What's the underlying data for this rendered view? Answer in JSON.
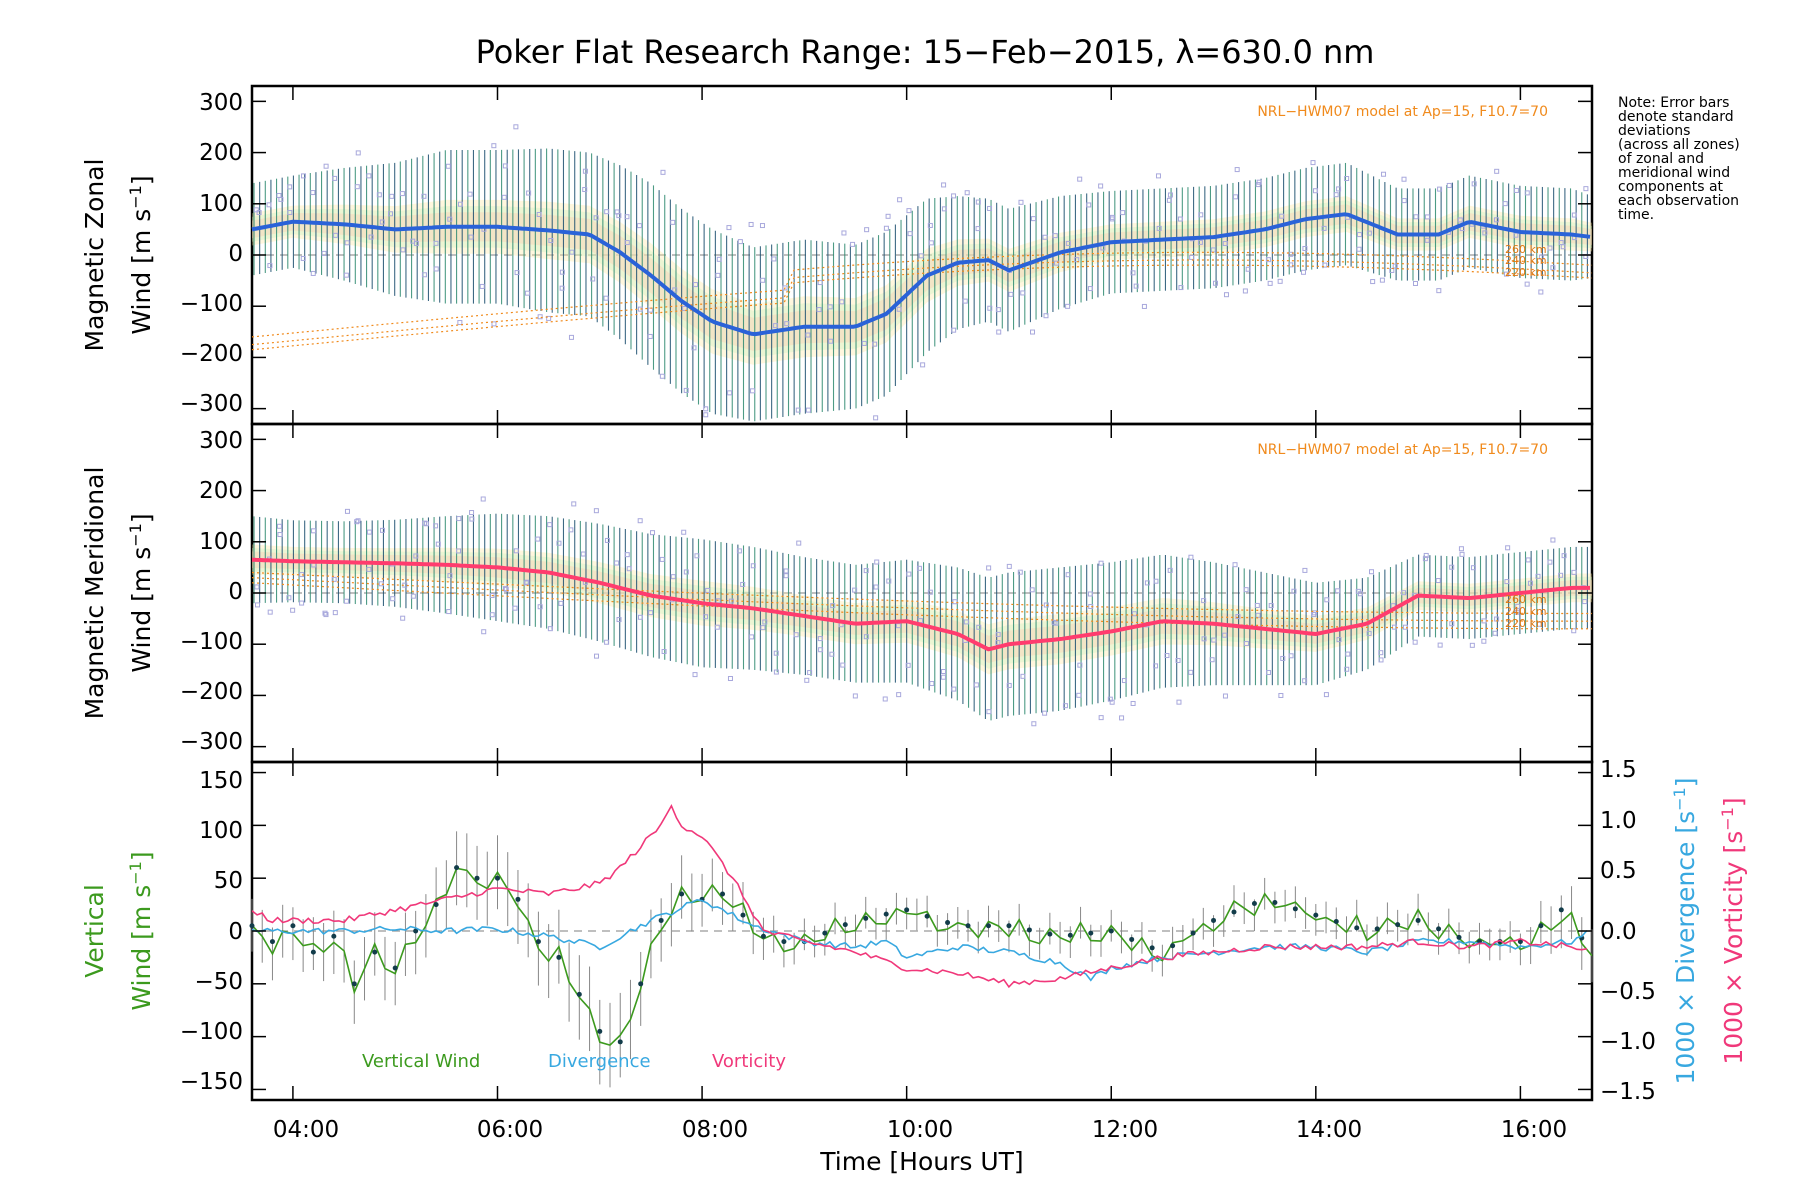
{
  "title": "Poker Flat Research Range: 15−Feb−2015, λ=630.0 nm",
  "note": [
    "Note: Error bars",
    "denote standard",
    "deviations",
    "(across all zones)",
    "of zonal and",
    "meridional wind",
    "components at",
    "each observation",
    "time."
  ],
  "model_note": "NRL−HWM07 model at Ap=15, F10.7=70",
  "altitude_labels": [
    "260 km",
    "240 km",
    "220 km"
  ],
  "x_axis": {
    "label": "Time [Hours UT]",
    "ticks": [
      "04:00",
      "06:00",
      "08:00",
      "10:00",
      "12:00",
      "14:00",
      "16:00"
    ],
    "range_hours": [
      3.6,
      16.7
    ]
  },
  "panels": {
    "zonal": {
      "ylabel_line1": "Magnetic Zonal",
      "ylabel_line2": "Wind [m s",
      "yticks": [
        "300",
        "200",
        "100",
        "0",
        "−100",
        "−200",
        "−300"
      ]
    },
    "meridional": {
      "ylabel_line1": "Magnetic Meridional",
      "ylabel_line2": "Wind [m s",
      "yticks": [
        "300",
        "200",
        "100",
        "0",
        "−100",
        "−200",
        "−300"
      ]
    },
    "vertical": {
      "ylabel_line1": "Vertical",
      "ylabel_line2": "Wind [m s",
      "yticks": [
        "150",
        "100",
        "50",
        "0",
        "−50",
        "−100",
        "−150"
      ],
      "right_yticks": [
        "1.5",
        "1.0",
        "0.5",
        "0.0",
        "−0.5",
        "−1.0",
        "−1.5"
      ],
      "right_label_div": "1000 × Divergence [s",
      "right_label_vort": "1000 × Vorticity [s",
      "legend": [
        "Vertical Wind",
        "Divergence",
        "Vorticity"
      ]
    }
  },
  "colors": {
    "zonal_line": "#2a62d8",
    "meridional_line": "#ff3c6e",
    "vertical": "#3c9a1e",
    "divergence": "#38a8e0",
    "vorticity": "#f0387a",
    "model": "#f08a1c",
    "scatter": "#a8a8dc",
    "errorbar": "#1b4f6e"
  },
  "chart_data": {
    "type": "line",
    "x_units": "hours UT",
    "series": [
      {
        "name": "Magnetic Zonal Wind",
        "ylim": [
          -330,
          330
        ],
        "x": [
          3.6,
          4.0,
          4.5,
          5.0,
          5.5,
          6.0,
          6.5,
          6.9,
          7.2,
          7.5,
          7.8,
          8.1,
          8.5,
          9.0,
          9.5,
          9.8,
          10.2,
          10.5,
          10.8,
          11.0,
          11.5,
          12.0,
          12.5,
          13.0,
          13.5,
          13.9,
          14.3,
          14.8,
          15.2,
          15.5,
          16.0,
          16.5,
          16.7
        ],
        "values": [
          50,
          65,
          60,
          50,
          55,
          55,
          48,
          40,
          5,
          -40,
          -90,
          -130,
          -155,
          -140,
          -140,
          -115,
          -40,
          -15,
          -10,
          -30,
          5,
          25,
          30,
          35,
          50,
          70,
          80,
          40,
          40,
          65,
          45,
          40,
          35
        ],
        "error": [
          90,
          90,
          110,
          130,
          150,
          150,
          160,
          160,
          170,
          180,
          180,
          180,
          170,
          170,
          160,
          160,
          150,
          130,
          120,
          120,
          110,
          100,
          100,
          100,
          100,
          100,
          100,
          90,
          90,
          90,
          90,
          90,
          80
        ]
      },
      {
        "name": "Magnetic Meridional Wind",
        "ylim": [
          -330,
          330
        ],
        "x": [
          3.6,
          4.0,
          4.5,
          5.0,
          5.5,
          6.0,
          6.5,
          7.0,
          7.5,
          8.0,
          8.5,
          9.0,
          9.5,
          10.0,
          10.5,
          10.8,
          11.0,
          11.5,
          12.0,
          12.5,
          13.0,
          13.5,
          14.0,
          14.5,
          15.0,
          15.5,
          16.0,
          16.5,
          16.7
        ],
        "values": [
          65,
          62,
          60,
          58,
          55,
          50,
          40,
          20,
          -5,
          -20,
          -30,
          -45,
          -60,
          -55,
          -80,
          -110,
          -100,
          -90,
          -75,
          -55,
          -60,
          -70,
          -80,
          -60,
          -5,
          -10,
          0,
          10,
          10
        ],
        "error": [
          85,
          80,
          80,
          85,
          95,
          105,
          110,
          115,
          120,
          125,
          120,
          115,
          115,
          120,
          130,
          140,
          140,
          140,
          135,
          130,
          120,
          110,
          100,
          90,
          80,
          80,
          80,
          80,
          80
        ]
      },
      {
        "name": "Vertical Wind",
        "ylim": [
          -160,
          160
        ],
        "x": [
          3.6,
          3.8,
          4.0,
          4.2,
          4.4,
          4.6,
          4.8,
          5.0,
          5.2,
          5.4,
          5.6,
          5.8,
          6.0,
          6.2,
          6.4,
          6.6,
          6.8,
          7.0,
          7.2,
          7.4,
          7.6,
          7.8,
          8.0,
          8.2,
          8.4,
          8.6,
          8.8,
          9.0,
          9.5,
          10.0,
          10.5,
          11.0,
          11.5,
          12.0,
          12.5,
          13.0,
          13.5,
          14.0,
          14.5,
          15.0,
          15.5,
          16.0,
          16.4,
          16.7
        ],
        "values": [
          5,
          -10,
          5,
          -20,
          -5,
          -50,
          -20,
          -35,
          0,
          25,
          60,
          50,
          50,
          30,
          -10,
          -25,
          -60,
          -95,
          -105,
          -50,
          10,
          35,
          30,
          35,
          15,
          -5,
          -10,
          -10,
          10,
          20,
          5,
          5,
          -5,
          0,
          -20,
          10,
          30,
          15,
          0,
          10,
          -10,
          -10,
          20,
          -20
        ],
        "error": [
          25,
          25,
          25,
          25,
          30,
          30,
          30,
          30,
          30,
          30,
          35,
          35,
          35,
          35,
          35,
          35,
          40,
          40,
          40,
          35,
          30,
          30,
          25,
          25,
          20,
          20,
          15,
          15,
          15,
          15,
          15,
          15,
          15,
          15,
          15,
          15,
          15,
          15,
          15,
          15,
          15,
          15,
          25,
          25
        ]
      },
      {
        "name": "1000 × Divergence",
        "y_axis": "right",
        "ylim": [
          -1.6,
          1.6
        ],
        "x": [
          3.6,
          4.0,
          4.5,
          5.0,
          5.5,
          6.0,
          6.5,
          7.0,
          7.5,
          8.0,
          8.5,
          9.0,
          9.5,
          9.8,
          10.0,
          10.5,
          11.0,
          11.5,
          11.8,
          12.0,
          12.5,
          13.0,
          13.5,
          14.0,
          14.5,
          15.0,
          15.5,
          16.0,
          16.5,
          16.7
        ],
        "values": [
          0.0,
          0.0,
          0.0,
          0.02,
          0.0,
          0.02,
          -0.05,
          -0.15,
          0.1,
          0.3,
          0.05,
          -0.1,
          -0.15,
          -0.1,
          -0.25,
          -0.15,
          -0.2,
          -0.3,
          -0.45,
          -0.35,
          -0.25,
          -0.2,
          -0.15,
          -0.15,
          -0.2,
          -0.1,
          -0.1,
          -0.15,
          -0.1,
          0.0
        ]
      },
      {
        "name": "1000 × Vorticity",
        "y_axis": "right",
        "ylim": [
          -1.6,
          1.6
        ],
        "x": [
          3.6,
          3.8,
          4.0,
          4.5,
          5.0,
          5.5,
          6.0,
          6.5,
          7.0,
          7.2,
          7.4,
          7.6,
          7.7,
          7.8,
          8.0,
          8.3,
          8.6,
          9.0,
          9.5,
          10.0,
          10.5,
          11.0,
          11.5,
          12.0,
          12.5,
          13.0,
          13.5,
          14.0,
          14.5,
          15.0,
          15.5,
          16.0,
          16.5,
          16.7
        ],
        "values": [
          0.2,
          0.1,
          0.1,
          0.1,
          0.2,
          0.3,
          0.4,
          0.35,
          0.45,
          0.6,
          0.8,
          1.0,
          1.2,
          1.0,
          0.9,
          0.5,
          0.0,
          -0.1,
          -0.2,
          -0.35,
          -0.4,
          -0.5,
          -0.45,
          -0.35,
          -0.25,
          -0.2,
          -0.15,
          -0.15,
          -0.15,
          -0.1,
          -0.15,
          -0.1,
          -0.15,
          -0.2
        ]
      }
    ]
  }
}
